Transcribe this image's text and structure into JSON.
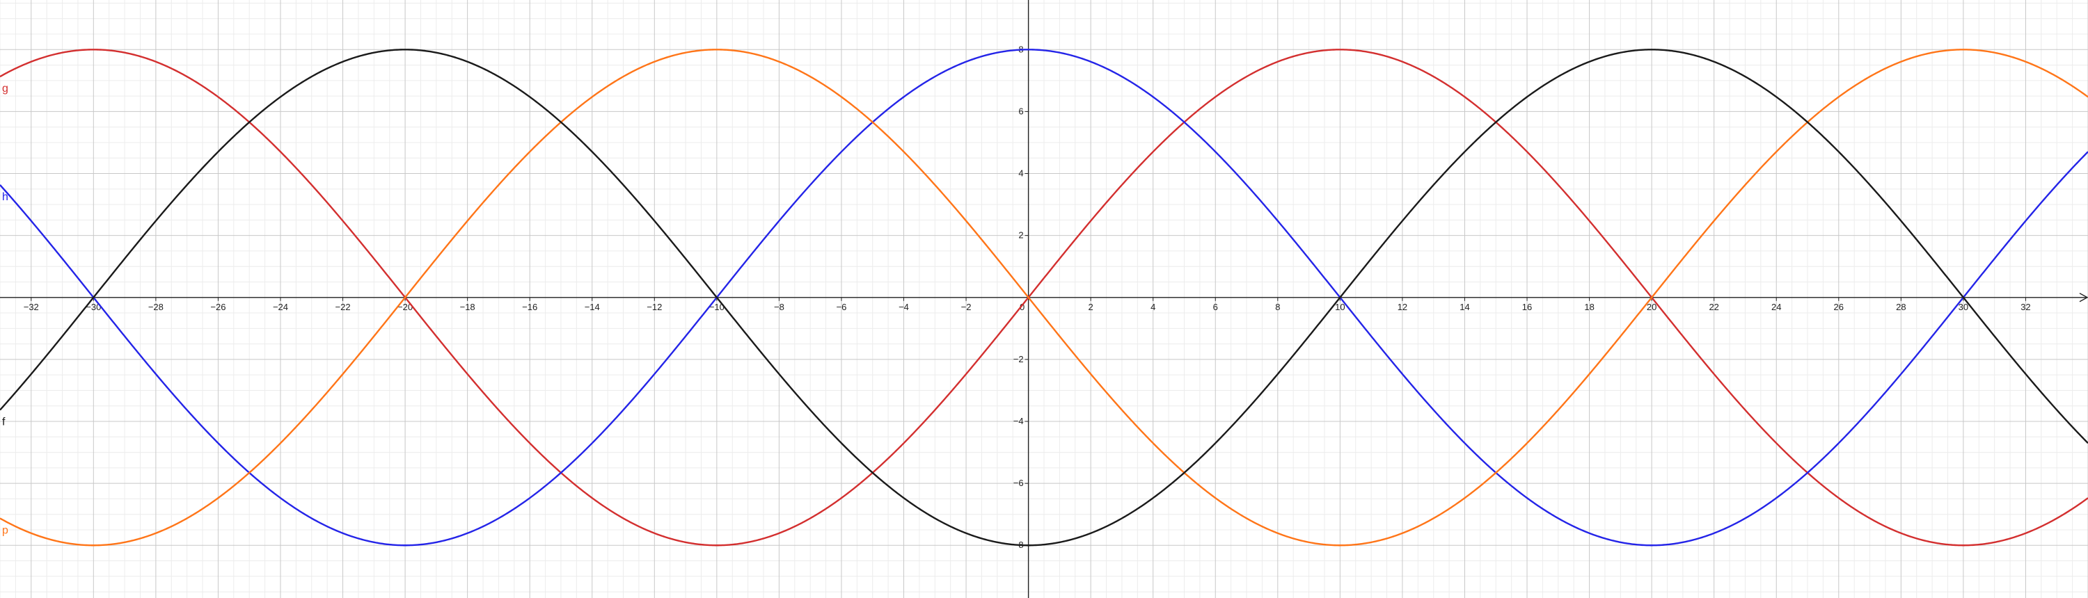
{
  "chart_data": {
    "type": "line",
    "xlim": [
      -33,
      34
    ],
    "ylim": [
      -9.7,
      9.6
    ],
    "grid": true,
    "x_ticks": [
      -32,
      -30,
      -28,
      -26,
      -24,
      -22,
      -20,
      -18,
      -16,
      -14,
      -12,
      -10,
      -8,
      -6,
      -4,
      -2,
      0,
      2,
      4,
      6,
      8,
      10,
      12,
      14,
      16,
      18,
      20,
      22,
      24,
      26,
      28,
      30,
      32
    ],
    "y_ticks": [
      -8,
      -6,
      -4,
      -2,
      2,
      4,
      6,
      8
    ],
    "series": [
      {
        "name": "g",
        "color": "#d32f2f",
        "function": "8*sin(pi*x/20)",
        "amplitude": 8,
        "period": 40,
        "phase": 0
      },
      {
        "name": "h",
        "color": "#2424e8",
        "function": "8*cos(pi*x/20)",
        "amplitude": 8,
        "period": 40,
        "phase": 90
      },
      {
        "name": "p",
        "color": "#ff7518",
        "function": "-8*sin(pi*x/20)",
        "amplitude": 8,
        "period": 40,
        "phase": 180
      },
      {
        "name": "f",
        "color": "#1a1a1a",
        "function": "-8*cos(pi*x/20)",
        "amplitude": 8,
        "period": 40,
        "phase": 270
      }
    ]
  }
}
